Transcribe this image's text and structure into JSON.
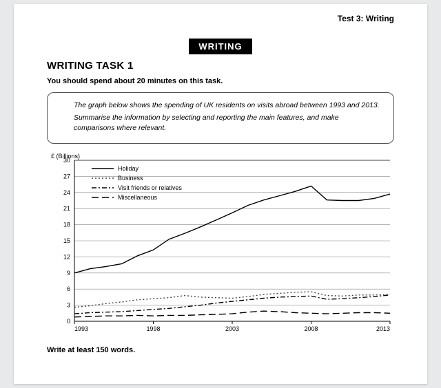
{
  "header": {
    "test_label": "Test 3: Writing",
    "badge": "WRITING",
    "task_title": "WRITING TASK 1",
    "instruction": "You should spend about 20 minutes on this task."
  },
  "prompt": {
    "p1": "The graph below shows the spending of UK residents on visits abroad between 1993 and 2013.",
    "p2": "Summarise the information by selecting and reporting the main features, and make comparisons where relevant."
  },
  "chart": {
    "type": "line",
    "ylabel": "£ (Billions)",
    "ylim": [
      0,
      30
    ],
    "ytick_step": 3,
    "yticks": [
      0,
      3,
      6,
      9,
      12,
      15,
      18,
      21,
      24,
      27,
      30
    ],
    "xlim": [
      1993,
      2013
    ],
    "xticks": [
      1993,
      1998,
      2003,
      2008,
      2013
    ],
    "background_color": "#ffffff",
    "grid_color": "#888888",
    "axis_color": "#000000",
    "label_fontsize": 9,
    "tick_fontsize": 9,
    "legend_fontsize": 9,
    "line_width": 1.4,
    "series": [
      {
        "name": "Holiday",
        "dash": "solid",
        "color": "#000000",
        "points": [
          [
            1993,
            9.0
          ],
          [
            1994,
            9.8
          ],
          [
            1995,
            10.2
          ],
          [
            1996,
            10.7
          ],
          [
            1997,
            12.2
          ],
          [
            1998,
            13.3
          ],
          [
            1999,
            15.3
          ],
          [
            2000,
            16.4
          ],
          [
            2001,
            17.6
          ],
          [
            2002,
            18.9
          ],
          [
            2003,
            20.2
          ],
          [
            2004,
            21.6
          ],
          [
            2005,
            22.6
          ],
          [
            2006,
            23.4
          ],
          [
            2007,
            24.2
          ],
          [
            2008,
            25.2
          ],
          [
            2009,
            22.6
          ],
          [
            2010,
            22.5
          ],
          [
            2011,
            22.5
          ],
          [
            2012,
            22.9
          ],
          [
            2013,
            23.7
          ]
        ]
      },
      {
        "name": "Business",
        "dash": "dotted",
        "color": "#444444",
        "points": [
          [
            1993,
            2.6
          ],
          [
            1994,
            2.9
          ],
          [
            1995,
            3.3
          ],
          [
            1996,
            3.6
          ],
          [
            1997,
            4.0
          ],
          [
            1998,
            4.2
          ],
          [
            1999,
            4.4
          ],
          [
            2000,
            4.8
          ],
          [
            2001,
            4.5
          ],
          [
            2002,
            4.4
          ],
          [
            2003,
            4.3
          ],
          [
            2004,
            4.6
          ],
          [
            2005,
            5.0
          ],
          [
            2006,
            5.2
          ],
          [
            2007,
            5.4
          ],
          [
            2008,
            5.5
          ],
          [
            2009,
            4.8
          ],
          [
            2010,
            4.7
          ],
          [
            2011,
            4.9
          ],
          [
            2012,
            4.9
          ],
          [
            2013,
            5.0
          ]
        ]
      },
      {
        "name": "Visit friends or relatives",
        "dash": "dash-dot",
        "color": "#000000",
        "points": [
          [
            1993,
            1.4
          ],
          [
            1994,
            1.6
          ],
          [
            1995,
            1.7
          ],
          [
            1996,
            1.8
          ],
          [
            1997,
            2.0
          ],
          [
            1998,
            2.2
          ],
          [
            1999,
            2.4
          ],
          [
            2000,
            2.7
          ],
          [
            2001,
            3.0
          ],
          [
            2002,
            3.4
          ],
          [
            2003,
            3.7
          ],
          [
            2004,
            4.0
          ],
          [
            2005,
            4.3
          ],
          [
            2006,
            4.5
          ],
          [
            2007,
            4.6
          ],
          [
            2008,
            4.7
          ],
          [
            2009,
            4.1
          ],
          [
            2010,
            4.2
          ],
          [
            2011,
            4.4
          ],
          [
            2012,
            4.6
          ],
          [
            2013,
            4.9
          ]
        ]
      },
      {
        "name": "Miscellaneous",
        "dash": "long-dash",
        "color": "#000000",
        "points": [
          [
            1993,
            0.8
          ],
          [
            1994,
            0.9
          ],
          [
            1995,
            1.0
          ],
          [
            1996,
            1.0
          ],
          [
            1997,
            1.1
          ],
          [
            1998,
            1.0
          ],
          [
            1999,
            1.1
          ],
          [
            2000,
            1.1
          ],
          [
            2001,
            1.2
          ],
          [
            2002,
            1.3
          ],
          [
            2003,
            1.4
          ],
          [
            2004,
            1.7
          ],
          [
            2005,
            1.9
          ],
          [
            2006,
            1.8
          ],
          [
            2007,
            1.6
          ],
          [
            2008,
            1.5
          ],
          [
            2009,
            1.4
          ],
          [
            2010,
            1.5
          ],
          [
            2011,
            1.6
          ],
          [
            2012,
            1.6
          ],
          [
            2013,
            1.5
          ]
        ]
      }
    ]
  },
  "footer": {
    "instruction": "Write at least 150 words."
  }
}
